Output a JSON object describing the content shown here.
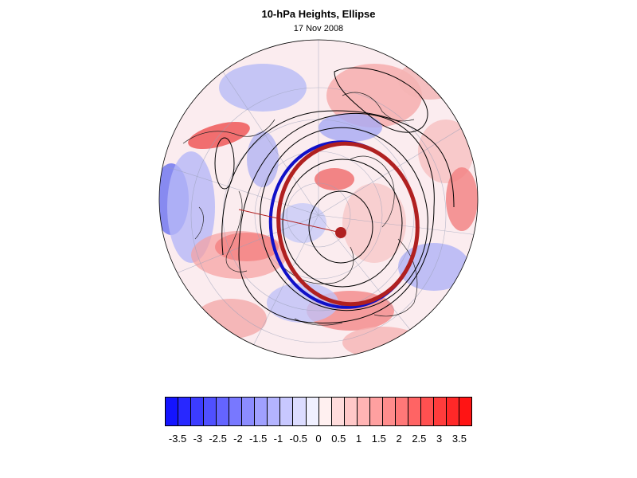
{
  "title": "10-hPa Heights, Ellipse",
  "subtitle": "17 Nov 2008",
  "map": {
    "projection": "north-polar-stereographic",
    "field": "height-anomaly",
    "ellipse_color_blue": "#1010c8",
    "ellipse_color_red": "#b02020",
    "center_marker_color": "#b02020"
  },
  "colorbar": {
    "colors": [
      "#1414ff",
      "#2828ff",
      "#3c3cff",
      "#5050ff",
      "#6464ff",
      "#7878ff",
      "#8c8cff",
      "#a0a0ff",
      "#b4b4ff",
      "#c8c8ff",
      "#dcdcff",
      "#f0f0ff",
      "#fff0f0",
      "#ffdcdc",
      "#ffc8c8",
      "#ffb4b4",
      "#ffa0a0",
      "#ff8c8c",
      "#ff7878",
      "#ff6464",
      "#ff5050",
      "#ff3c3c",
      "#ff2828",
      "#ff1414"
    ],
    "ticks": [
      "-3.5",
      "-3",
      "-2.5",
      "-2",
      "-1.5",
      "-1",
      "-0.5",
      "0",
      "0.5",
      "1",
      "1.5",
      "2",
      "2.5",
      "3",
      "3.5"
    ]
  }
}
